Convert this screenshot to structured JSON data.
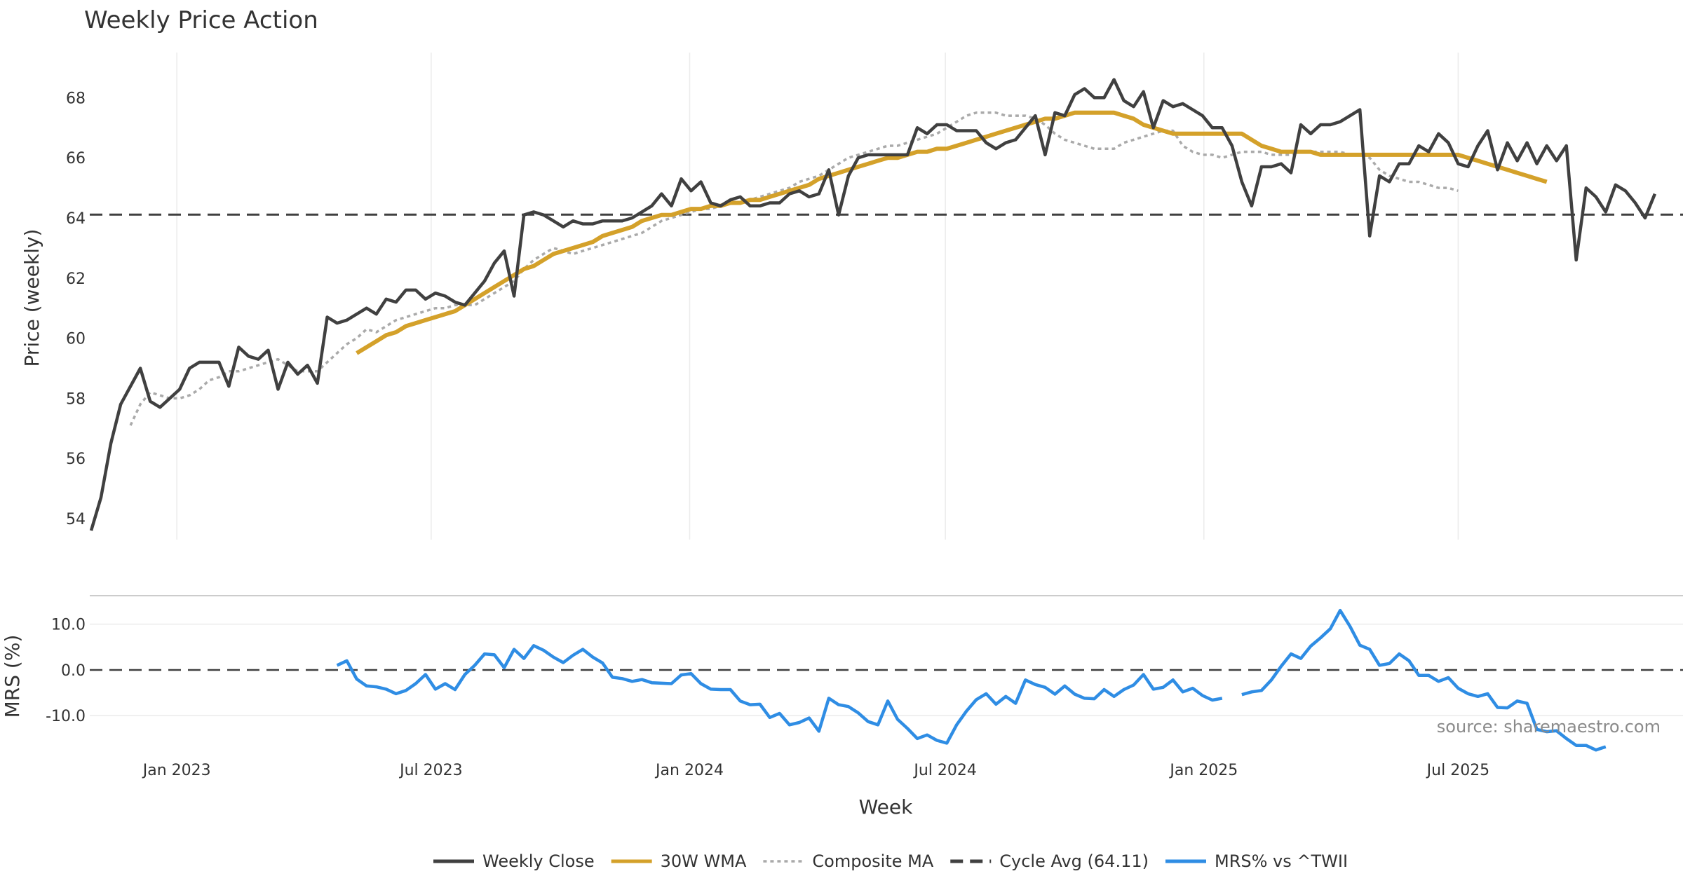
{
  "chart_data": {
    "type": "line",
    "title": "Weekly Price Action",
    "source_note": "source: sharemaestro.com",
    "x_start": "2022-10-31",
    "x_end": "2025-12-08",
    "xlabel": "Week",
    "x_tick_labels": [
      {
        "date": "2023-01-01",
        "label": "Jan 2023"
      },
      {
        "date": "2023-07-01",
        "label": "Jul 2023"
      },
      {
        "date": "2024-01-01",
        "label": "Jan 2024"
      },
      {
        "date": "2024-07-01",
        "label": "Jul 2024"
      },
      {
        "date": "2025-01-01",
        "label": "Jan 2025"
      },
      {
        "date": "2025-07-01",
        "label": "Jul 2025"
      }
    ],
    "price_panel": {
      "ylabel": "Price (weekly)",
      "ylim": [
        53.3,
        69.5
      ],
      "yticks": [
        54,
        56,
        58,
        60,
        62,
        64,
        66,
        68
      ],
      "cycle_avg": 64.11,
      "series": [
        {
          "name": "Weekly Close",
          "color": "#404040",
          "style": "solid",
          "start": "2022-11-01",
          "step_days": 7,
          "values": [
            53.6,
            54.7,
            56.5,
            57.8,
            58.4,
            59.0,
            57.9,
            57.7,
            58.0,
            58.3,
            59.0,
            59.2,
            59.2,
            59.2,
            58.4,
            59.7,
            59.4,
            59.3,
            59.6,
            58.3,
            59.2,
            58.8,
            59.1,
            58.5,
            60.7,
            60.5,
            60.6,
            60.8,
            61.0,
            60.8,
            61.3,
            61.2,
            61.6,
            61.6,
            61.3,
            61.5,
            61.4,
            61.2,
            61.1,
            61.5,
            61.9,
            62.5,
            62.9,
            61.4,
            64.1,
            64.2,
            64.1,
            63.9,
            63.7,
            63.9,
            63.8,
            63.8,
            63.9,
            63.9,
            63.9,
            64.0,
            64.2,
            64.4,
            64.8,
            64.4,
            65.3,
            64.9,
            65.2,
            64.5,
            64.4,
            64.6,
            64.7,
            64.4,
            64.4,
            64.5,
            64.5,
            64.8,
            64.9,
            64.7,
            64.8,
            65.6,
            64.1,
            65.4,
            66.0,
            66.1,
            66.1,
            66.1,
            66.1,
            66.1,
            67.0,
            66.8,
            67.1,
            67.1,
            66.9,
            66.9,
            66.9,
            66.5,
            66.3,
            66.5,
            66.6,
            67.0,
            67.4,
            66.1,
            67.5,
            67.4,
            68.1,
            68.3,
            68.0,
            68.0,
            68.6,
            67.9,
            67.7,
            68.2,
            67.0,
            67.9,
            67.7,
            67.8,
            67.6,
            67.4,
            67.0,
            67.0,
            66.4,
            65.2,
            64.4,
            65.7,
            65.7,
            65.8,
            65.5,
            67.1,
            66.8,
            67.1,
            67.1,
            67.2,
            67.4,
            67.6,
            63.4,
            65.4,
            65.2,
            65.8,
            65.8,
            66.4,
            66.2,
            66.8,
            66.5,
            65.8,
            65.7,
            66.4,
            66.9,
            65.6,
            66.5,
            65.9,
            66.5,
            65.8,
            66.4,
            65.9,
            66.4,
            62.6,
            65.0,
            64.7,
            64.2,
            65.1,
            64.9,
            64.5,
            64.0,
            64.8
          ]
        },
        {
          "name": "30W WMA",
          "color": "#d4a12a",
          "style": "solid",
          "start": "2023-05-09",
          "step_days": 7,
          "values": [
            59.5,
            59.7,
            59.9,
            60.1,
            60.2,
            60.4,
            60.5,
            60.6,
            60.7,
            60.8,
            60.9,
            61.1,
            61.3,
            61.5,
            61.7,
            61.9,
            62.1,
            62.3,
            62.4,
            62.6,
            62.8,
            62.9,
            63.0,
            63.1,
            63.2,
            63.4,
            63.5,
            63.6,
            63.7,
            63.9,
            64.0,
            64.1,
            64.1,
            64.2,
            64.3,
            64.3,
            64.4,
            64.4,
            64.5,
            64.5,
            64.6,
            64.6,
            64.7,
            64.8,
            64.9,
            65.0,
            65.1,
            65.3,
            65.4,
            65.5,
            65.6,
            65.7,
            65.8,
            65.9,
            66.0,
            66.0,
            66.1,
            66.2,
            66.2,
            66.3,
            66.3,
            66.4,
            66.5,
            66.6,
            66.7,
            66.8,
            66.9,
            67.0,
            67.1,
            67.2,
            67.3,
            67.3,
            67.4,
            67.5,
            67.5,
            67.5,
            67.5,
            67.5,
            67.4,
            67.3,
            67.1,
            67.0,
            66.9,
            66.8,
            66.8,
            66.8,
            66.8,
            66.8,
            66.8,
            66.8,
            66.8,
            66.6,
            66.4,
            66.3,
            66.2,
            66.2,
            66.2,
            66.2,
            66.1,
            66.1,
            66.1,
            66.1,
            66.1,
            66.1,
            66.1,
            66.1,
            66.1,
            66.1,
            66.1,
            66.1,
            66.1,
            66.1,
            66.1,
            66.0,
            65.9,
            65.8,
            65.7,
            65.6,
            65.5,
            65.4,
            65.3,
            65.2
          ]
        },
        {
          "name": "Composite MA",
          "color": "#aaaaaa",
          "style": "dotted",
          "start": "2022-11-29",
          "step_days": 7,
          "values": [
            57.1,
            57.8,
            58.2,
            58.1,
            58.0,
            58.0,
            58.1,
            58.3,
            58.6,
            58.7,
            58.9,
            58.9,
            59.0,
            59.1,
            59.2,
            59.3,
            59.1,
            58.9,
            58.9,
            58.9,
            59.2,
            59.5,
            59.8,
            60.0,
            60.3,
            60.2,
            60.4,
            60.6,
            60.7,
            60.8,
            60.9,
            61.0,
            61.0,
            61.1,
            61.1,
            61.1,
            61.3,
            61.5,
            61.7,
            61.9,
            62.3,
            62.6,
            62.8,
            63.0,
            62.9,
            62.8,
            62.9,
            63.0,
            63.1,
            63.2,
            63.3,
            63.4,
            63.5,
            63.7,
            63.9,
            64.0,
            64.1,
            64.2,
            64.3,
            64.3,
            64.4,
            64.5,
            64.5,
            64.6,
            64.7,
            64.8,
            64.9,
            65.0,
            65.2,
            65.3,
            65.4,
            65.6,
            65.8,
            66.0,
            66.1,
            66.2,
            66.3,
            66.4,
            66.4,
            66.5,
            66.6,
            66.7,
            66.8,
            67.0,
            67.2,
            67.4,
            67.5,
            67.5,
            67.5,
            67.4,
            67.4,
            67.4,
            67.3,
            67.1,
            66.8,
            66.6,
            66.5,
            66.4,
            66.3,
            66.3,
            66.3,
            66.5,
            66.6,
            66.7,
            66.8,
            66.9,
            66.9,
            66.4,
            66.2,
            66.1,
            66.1,
            66.0,
            66.1,
            66.2,
            66.2,
            66.2,
            66.1,
            66.1,
            66.1,
            66.2,
            66.2,
            66.2,
            66.2,
            66.2,
            66.1,
            66.1,
            66.0,
            65.6,
            65.4,
            65.3,
            65.2,
            65.2,
            65.1,
            65.0,
            65.0,
            64.9
          ]
        },
        {
          "name": "Cycle Avg (64.11)",
          "color": "#404040",
          "style": "dashed",
          "constant": 64.11
        }
      ]
    },
    "mrs_panel": {
      "ylabel": "MRS (%)",
      "ylim": [
        -19,
        15
      ],
      "yticks": [
        {
          "value": 10,
          "label": "10.0"
        },
        {
          "value": 0,
          "label": "0.0"
        },
        {
          "value": -10,
          "label": "-10.0"
        }
      ],
      "zero_line": 0,
      "series": [
        {
          "name": "MRS% vs ^TWII",
          "color": "#2f8de4",
          "style": "solid",
          "segments": [
            {
              "start": "2023-04-25",
              "step_days": 7,
              "values": [
                1,
                2,
                -2,
                -3.5,
                -3.7,
                -4.2,
                -5.2,
                -4.5,
                -3,
                -1,
                -4.2,
                -3,
                -4.3,
                -1,
                1,
                3.5,
                3.3,
                0.5,
                4.5,
                2.5,
                5.3,
                4.3,
                2.8,
                1.6,
                3.2,
                4.5,
                2.8,
                1.5,
                -1.6,
                -1.9,
                -2.5,
                -2.1,
                -2.8,
                -2.9,
                -3,
                -1.1,
                -0.8,
                -3,
                -4.2,
                -4.3,
                -4.3,
                -6.8,
                -7.6,
                -7.5,
                -10.4,
                -9.5,
                -12,
                -11.5,
                -10.5,
                -13.4,
                -6.2,
                -7.6,
                -8,
                -9.4,
                -11.3,
                -12,
                -6.8,
                -10.8,
                -12.8,
                -15,
                -14.2,
                -15.4,
                -16,
                -12,
                -9,
                -6.5,
                -5.2,
                -7.5,
                -5.8,
                -7.3,
                -2.2,
                -3.2,
                -3.8,
                -5.3,
                -3.5,
                -5.3,
                -6.2,
                -6.3,
                -4.3,
                -5.8,
                -4.3,
                -3.3,
                -1,
                -4.2,
                -3.8,
                -2.2,
                -4.8,
                -4,
                -5.6,
                -6.6,
                -6.2
              ]
            },
            {
              "start": "2025-01-28",
              "step_days": 7,
              "values": [
                -5.4,
                -4.8,
                -4.5,
                -2.2,
                0.8,
                3.5,
                2.5,
                5.2,
                7,
                9,
                13,
                9.5,
                5.4,
                4.5,
                1,
                1.4,
                3.5,
                2,
                -1.2,
                -1.2,
                -2.5,
                -1.7,
                -4,
                -5.2,
                -5.8,
                -5.2,
                -8.2,
                -8.3,
                -6.8,
                -7.3,
                -13,
                -13.5,
                -13.3,
                -15,
                -16.5,
                -16.5,
                -17.5,
                -16.8
              ]
            }
          ]
        }
      ]
    },
    "legend": {
      "placement": "bottom-center",
      "entries": [
        "Weekly Close",
        "30W WMA",
        "Composite MA",
        "Cycle Avg (64.11)",
        "MRS% vs ^TWII"
      ]
    }
  }
}
